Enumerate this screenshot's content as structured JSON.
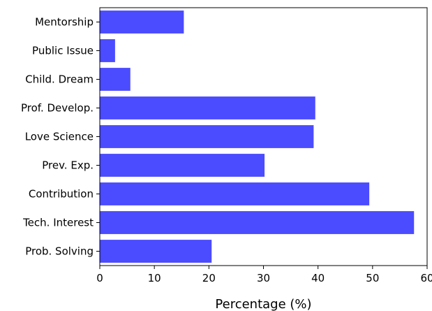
{
  "chart_data": {
    "type": "bar",
    "orientation": "horizontal",
    "categories": [
      "Prob. Solving",
      "Tech. Interest",
      "Contribution",
      "Prev. Exp.",
      "Love Science",
      "Prof. Develop.",
      "Child. Dream",
      "Public Issue",
      "Mentorship"
    ],
    "values": [
      20.5,
      57.6,
      49.4,
      30.2,
      39.2,
      39.5,
      5.6,
      2.8,
      15.4
    ],
    "title": "",
    "xlabel": "Percentage (%)",
    "ylabel": "",
    "xlim": [
      0,
      60
    ],
    "xticks": [
      "0",
      "10",
      "20",
      "30",
      "40",
      "50",
      "60"
    ],
    "grid": false,
    "bar_color": "#4b4bff"
  }
}
